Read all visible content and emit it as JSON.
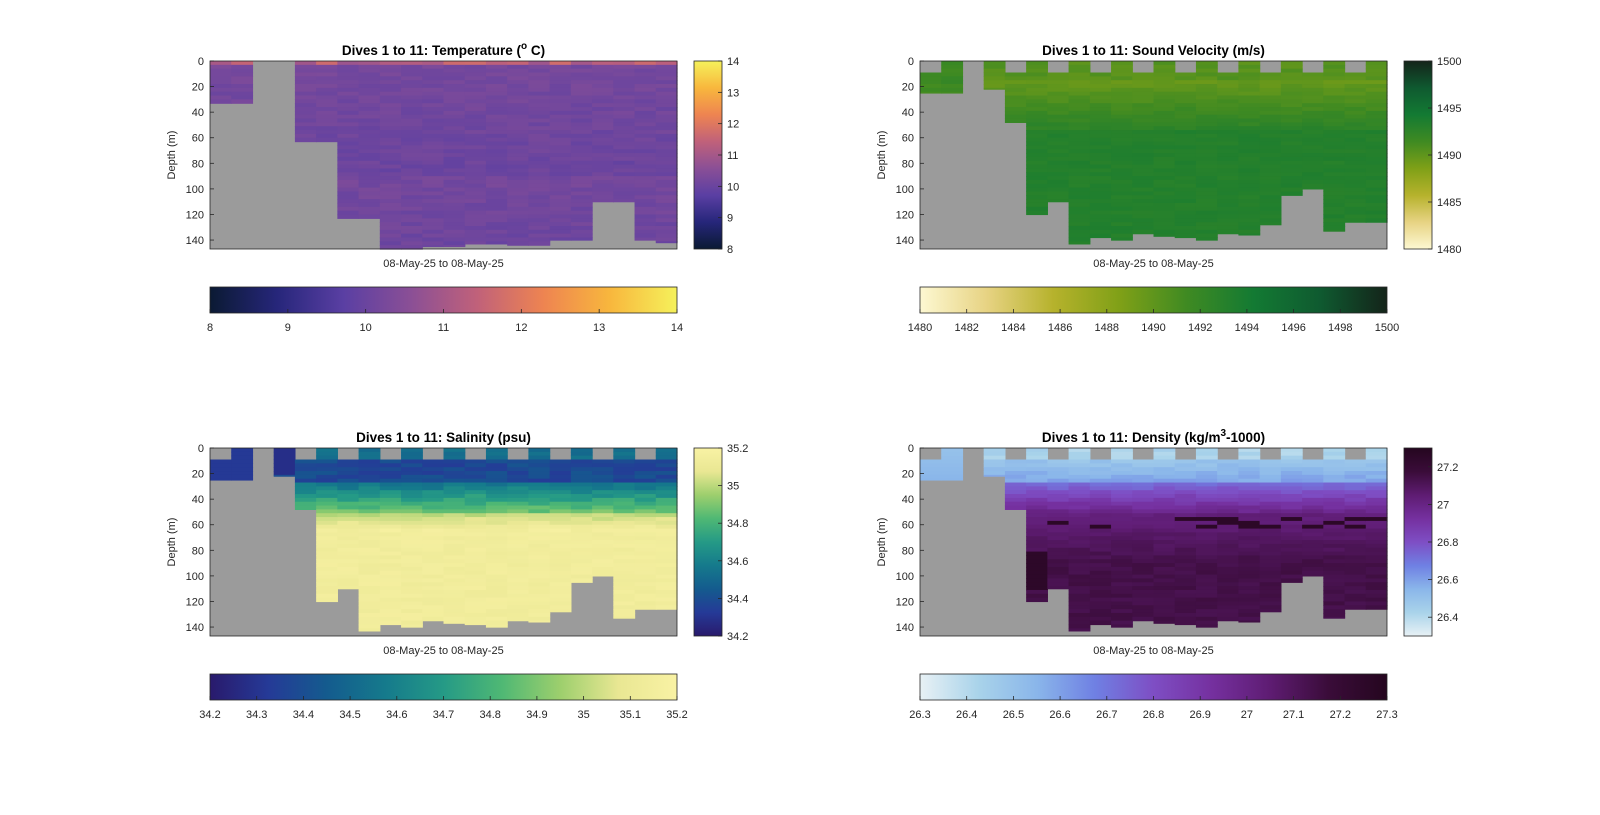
{
  "figure": {
    "background": "#ffffff",
    "no_data_color": "#9b9b9b"
  },
  "chart_data": [
    {
      "type": "heatmap",
      "title_prefix": "Dives 1 to 11: Temperature (",
      "title_superscript": "o",
      "title_suffix": " C)",
      "xlabel": "08-May-25 to 08-May-25",
      "ylabel": "Depth (m)",
      "y_ticks": [
        "0",
        "20",
        "40",
        "60",
        "80",
        "100",
        "120",
        "140"
      ],
      "ylim": [
        0,
        147
      ],
      "y_reversed": true,
      "colorbar_ticks": [
        "8",
        "9",
        "10",
        "11",
        "12",
        "13",
        "14"
      ],
      "horizontal_colorbar_ticks": [
        "8",
        "9",
        "10",
        "11",
        "12",
        "13",
        "14"
      ],
      "clim": [
        8,
        14
      ],
      "colormap": [
        "#0b1a33",
        "#26267a",
        "#5a3fa3",
        "#8a4f96",
        "#c0617a",
        "#ee8451",
        "#f8b73d",
        "#f5f15b"
      ],
      "field": "temperature",
      "typical_value": 10.2,
      "dives_columns": 22,
      "max_depth_per_column": [
        33,
        33,
        0,
        0,
        63,
        63,
        123,
        123,
        147,
        147,
        145,
        145,
        143,
        143,
        144,
        144,
        140,
        140,
        110,
        110,
        140,
        142
      ]
    },
    {
      "type": "heatmap",
      "title_prefix": "Dives 1 to 11: Sound Velocity (m/s)",
      "title_superscript": "",
      "title_suffix": "",
      "xlabel": "08-May-25 to 08-May-25",
      "ylabel": "Depth (m)",
      "y_ticks": [
        "0",
        "20",
        "40",
        "60",
        "80",
        "100",
        "120",
        "140"
      ],
      "ylim": [
        0,
        147
      ],
      "y_reversed": true,
      "colorbar_ticks": [
        "1480",
        "1485",
        "1490",
        "1495",
        "1500"
      ],
      "horizontal_colorbar_ticks": [
        "1480",
        "1482",
        "1484",
        "1486",
        "1488",
        "1490",
        "1492",
        "1494",
        "1496",
        "1498",
        "1500"
      ],
      "clim": [
        1480,
        1500
      ],
      "colormap": [
        "#fdf8d2",
        "#e7d383",
        "#b6b22c",
        "#7fa017",
        "#3f8a22",
        "#137a33",
        "#0f5a30",
        "#14241a"
      ],
      "field": "sound_velocity",
      "max_depth_per_column": [
        25,
        25,
        0,
        22,
        48,
        120,
        110,
        143,
        138,
        140,
        135,
        137,
        138,
        140,
        135,
        136,
        128,
        105,
        100,
        133,
        126,
        126
      ]
    },
    {
      "type": "heatmap",
      "title_prefix": "Dives 1 to 11: Salinity (psu)",
      "title_superscript": "",
      "title_suffix": "",
      "xlabel": "08-May-25 to 08-May-25",
      "ylabel": "Depth (m)",
      "y_ticks": [
        "0",
        "20",
        "40",
        "60",
        "80",
        "100",
        "120",
        "140"
      ],
      "ylim": [
        0,
        147
      ],
      "y_reversed": true,
      "colorbar_ticks": [
        "34.2",
        "34.4",
        "34.6",
        "34.8",
        "35",
        "35.2"
      ],
      "horizontal_colorbar_ticks": [
        "34.2",
        "34.3",
        "34.4",
        "34.5",
        "34.6",
        "34.7",
        "34.8",
        "34.9",
        "35",
        "35.1",
        "35.2"
      ],
      "clim": [
        34.2,
        35.2
      ],
      "colormap": [
        "#291a6c",
        "#253a97",
        "#145b8e",
        "#157a8c",
        "#259a86",
        "#4fb874",
        "#9dcf6d",
        "#e9e793",
        "#f9f2a4"
      ],
      "field": "salinity",
      "max_depth_per_column": [
        25,
        25,
        0,
        22,
        48,
        120,
        110,
        143,
        138,
        140,
        135,
        137,
        138,
        140,
        135,
        136,
        128,
        105,
        100,
        133,
        126,
        126
      ]
    },
    {
      "type": "heatmap",
      "title_prefix": "Dives 1 to 11: Density (kg/m",
      "title_superscript": "3",
      "title_suffix": "-1000)",
      "xlabel": "08-May-25 to 08-May-25",
      "ylabel": "Depth (m)",
      "y_ticks": [
        "0",
        "20",
        "40",
        "60",
        "80",
        "100",
        "120",
        "140"
      ],
      "ylim": [
        0,
        147
      ],
      "y_reversed": true,
      "colorbar_ticks": [
        "26.4",
        "26.6",
        "26.8",
        "27",
        "27.2"
      ],
      "horizontal_colorbar_ticks": [
        "26.3",
        "26.4",
        "26.5",
        "26.6",
        "26.7",
        "26.8",
        "26.9",
        "27",
        "27.1",
        "27.2",
        "27.3"
      ],
      "clim": [
        26.3,
        27.3
      ],
      "colormap": [
        "#e8f1f5",
        "#a9d3ea",
        "#8ab6ea",
        "#6f80e3",
        "#7e4ec4",
        "#75309f",
        "#5e1c72",
        "#3a0c39",
        "#25061f"
      ],
      "field": "density",
      "max_depth_per_column": [
        25,
        25,
        0,
        22,
        48,
        120,
        110,
        143,
        138,
        140,
        135,
        137,
        138,
        140,
        135,
        136,
        128,
        105,
        100,
        133,
        126,
        126
      ]
    }
  ]
}
